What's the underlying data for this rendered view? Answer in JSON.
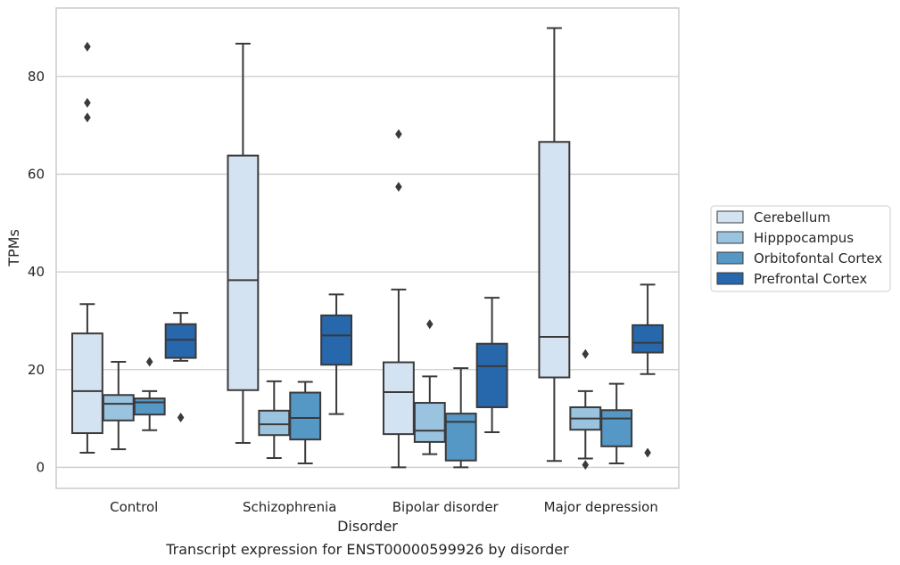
{
  "caption": "Transcript expression for ENST00000599926 by disorder",
  "chart_data": {
    "type": "boxplot",
    "xlabel": "Disorder",
    "ylabel": "TPMs",
    "ylim": [
      -4.3,
      94
    ],
    "yticks": [
      0,
      20,
      40,
      60,
      80
    ],
    "grid": "horizontal",
    "legend_position": "right",
    "categories": [
      "Control",
      "Schizophrenia",
      "Bipolar disorder",
      "Major depression"
    ],
    "series": [
      {
        "name": "Cerebellum",
        "color": "#d4e3f2",
        "boxes": [
          {
            "whisker_low": 3.0,
            "q1": 7.0,
            "median": 15.6,
            "q3": 27.4,
            "whisker_high": 33.4,
            "outliers": [
              71.6,
              74.6,
              86.1
            ]
          },
          {
            "whisker_low": 5.0,
            "q1": 15.8,
            "median": 38.3,
            "q3": 63.8,
            "whisker_high": 86.7,
            "outliers": []
          },
          {
            "whisker_low": 0.0,
            "q1": 6.8,
            "median": 15.4,
            "q3": 21.5,
            "whisker_high": 36.4,
            "outliers": [
              57.4,
              68.2
            ]
          },
          {
            "whisker_low": 1.3,
            "q1": 18.4,
            "median": 26.7,
            "q3": 66.6,
            "whisker_high": 89.9,
            "outliers": []
          }
        ]
      },
      {
        "name": "Hipppocampus",
        "color": "#9ac3df",
        "boxes": [
          {
            "whisker_low": 3.7,
            "q1": 9.6,
            "median": 13.0,
            "q3": 14.8,
            "whisker_high": 21.6,
            "outliers": []
          },
          {
            "whisker_low": 1.9,
            "q1": 6.6,
            "median": 8.8,
            "q3": 11.6,
            "whisker_high": 17.6,
            "outliers": []
          },
          {
            "whisker_low": 2.7,
            "q1": 5.2,
            "median": 7.5,
            "q3": 13.2,
            "whisker_high": 18.6,
            "outliers": [
              29.3
            ]
          },
          {
            "whisker_low": 1.8,
            "q1": 7.7,
            "median": 10.0,
            "q3": 12.3,
            "whisker_high": 15.6,
            "outliers": [
              0.5,
              23.2
            ]
          }
        ]
      },
      {
        "name": "Orbitofontal Cortex",
        "color": "#5597c5",
        "boxes": [
          {
            "whisker_low": 7.6,
            "q1": 10.8,
            "median": 13.3,
            "q3": 14.1,
            "whisker_high": 15.6,
            "outliers": [
              21.6
            ]
          },
          {
            "whisker_low": 0.8,
            "q1": 5.7,
            "median": 10.1,
            "q3": 15.3,
            "whisker_high": 17.5,
            "outliers": []
          },
          {
            "whisker_low": 0.0,
            "q1": 1.4,
            "median": 9.3,
            "q3": 11.0,
            "whisker_high": 20.3,
            "outliers": []
          },
          {
            "whisker_low": 0.8,
            "q1": 4.3,
            "median": 10.0,
            "q3": 11.7,
            "whisker_high": 17.1,
            "outliers": []
          }
        ]
      },
      {
        "name": "Prefrontal Cortex",
        "color": "#2767ac",
        "boxes": [
          {
            "whisker_low": 21.8,
            "q1": 22.4,
            "median": 26.1,
            "q3": 29.3,
            "whisker_high": 31.6,
            "outliers": [
              10.2
            ]
          },
          {
            "whisker_low": 10.9,
            "q1": 21.0,
            "median": 27.0,
            "q3": 31.1,
            "whisker_high": 35.4,
            "outliers": []
          },
          {
            "whisker_low": 7.2,
            "q1": 12.3,
            "median": 20.7,
            "q3": 25.3,
            "whisker_high": 34.7,
            "outliers": []
          },
          {
            "whisker_low": 19.1,
            "q1": 23.5,
            "median": 25.5,
            "q3": 29.1,
            "whisker_high": 37.4,
            "outliers": [
              3.0
            ]
          }
        ]
      }
    ]
  }
}
